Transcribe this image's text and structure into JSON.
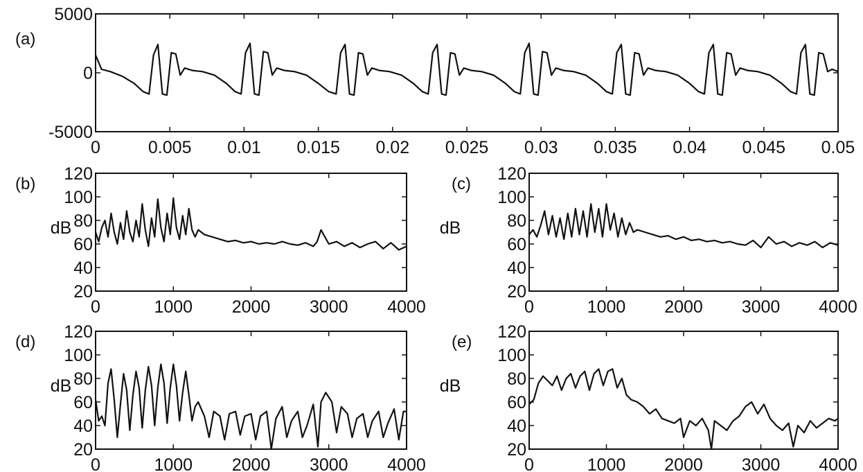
{
  "chart_data": [
    {
      "type": "line",
      "label": "(a)",
      "xlabel": "",
      "ylabel": "",
      "xlim": [
        0,
        0.05
      ],
      "ylim": [
        -5000,
        5000
      ],
      "xticks": [
        "0",
        "0.005",
        "0.01",
        "0.015",
        "0.02",
        "0.025",
        "0.03",
        "0.035",
        "0.04",
        "0.045",
        "0.05"
      ],
      "yticks": [
        "-5000",
        "0",
        "5000"
      ],
      "pitch_period": 0.0049,
      "series": [
        {
          "x": [
            0,
            0.0004,
            0.001,
            0.0018,
            0.0026,
            0.0032,
            0.0036,
            0.0039,
            0.0042,
            0.0045,
            0.0048,
            0.0051,
            0.0054,
            0.0057,
            0.006,
            0.0065,
            0.0072,
            0.008,
            0.0088,
            0.0094,
            0.0098,
            0.0101,
            0.0104,
            0.0107,
            0.011,
            0.0113,
            0.0116,
            0.0119,
            0.0122,
            0.0127,
            0.0134,
            0.0142,
            0.015,
            0.0157,
            0.0162,
            0.0165,
            0.0168,
            0.0171,
            0.0174,
            0.0177,
            0.018,
            0.0183,
            0.0186,
            0.0191,
            0.0198,
            0.0206,
            0.0214,
            0.022,
            0.0224,
            0.0227,
            0.023,
            0.0233,
            0.0236,
            0.0239,
            0.0242,
            0.0245,
            0.0248,
            0.0253,
            0.026,
            0.0268,
            0.0276,
            0.0282,
            0.0286,
            0.0289,
            0.0292,
            0.0295,
            0.0298,
            0.0301,
            0.0304,
            0.0307,
            0.031,
            0.0315,
            0.0322,
            0.033,
            0.0338,
            0.0344,
            0.0348,
            0.0351,
            0.0354,
            0.0357,
            0.036,
            0.0363,
            0.0366,
            0.0369,
            0.0372,
            0.0377,
            0.0384,
            0.0392,
            0.04,
            0.0406,
            0.041,
            0.0413,
            0.0416,
            0.0419,
            0.0422,
            0.0425,
            0.0428,
            0.0431,
            0.0434,
            0.0439,
            0.0446,
            0.0454,
            0.0462,
            0.0468,
            0.0472,
            0.0475,
            0.0478,
            0.0481,
            0.0484,
            0.0487,
            0.049,
            0.0493,
            0.0496,
            0.05
          ],
          "y": [
            1500,
            300,
            100,
            -300,
            -900,
            -1600,
            -1800,
            1500,
            2400,
            -1800,
            -1900,
            1700,
            1600,
            -200,
            400,
            200,
            100,
            -200,
            -900,
            -1600,
            -1800,
            1700,
            2500,
            -1800,
            -1900,
            1800,
            1700,
            -200,
            400,
            200,
            100,
            -200,
            -900,
            -1600,
            -1800,
            1700,
            2400,
            -1800,
            -1900,
            1700,
            1600,
            -200,
            400,
            200,
            100,
            -200,
            -900,
            -1600,
            -1800,
            1700,
            2400,
            -1800,
            -1900,
            1700,
            1600,
            -200,
            400,
            200,
            100,
            -200,
            -900,
            -1600,
            -1800,
            1700,
            2500,
            -1800,
            -1900,
            1800,
            1700,
            -200,
            400,
            200,
            100,
            -200,
            -900,
            -1600,
            -1800,
            1700,
            2400,
            -1800,
            -1900,
            1700,
            1600,
            -200,
            400,
            200,
            100,
            -200,
            -900,
            -1600,
            -1800,
            1700,
            2400,
            -1800,
            -1900,
            1700,
            1600,
            -200,
            400,
            200,
            100,
            -200,
            -900,
            -1600,
            -1800,
            1700,
            2400,
            -1800,
            -1900,
            1700,
            1600,
            100,
            300,
            100
          ]
        }
      ]
    },
    {
      "type": "line",
      "label": "(b)",
      "xlabel": "",
      "ylabel": "dB",
      "xlim": [
        0,
        4000
      ],
      "ylim": [
        20,
        120
      ],
      "xticks": [
        "0",
        "1000",
        "2000",
        "3000",
        "4000"
      ],
      "yticks": [
        "20",
        "40",
        "60",
        "80",
        "100",
        "120"
      ],
      "harmonic_spacing": 200,
      "series": [
        {
          "x": [
            0,
            40,
            80,
            120,
            160,
            200,
            240,
            280,
            320,
            360,
            400,
            440,
            480,
            520,
            560,
            600,
            640,
            680,
            720,
            760,
            800,
            840,
            880,
            920,
            960,
            1000,
            1040,
            1080,
            1120,
            1160,
            1200,
            1240,
            1280,
            1320,
            1400,
            1500,
            1600,
            1700,
            1800,
            1900,
            2000,
            2100,
            2200,
            2300,
            2400,
            2500,
            2600,
            2700,
            2800,
            2850,
            2900,
            2950,
            3000,
            3100,
            3200,
            3300,
            3400,
            3500,
            3600,
            3700,
            3800,
            3900,
            4000
          ],
          "y": [
            70,
            62,
            74,
            80,
            66,
            86,
            70,
            60,
            78,
            64,
            88,
            70,
            62,
            80,
            66,
            94,
            72,
            58,
            82,
            66,
            98,
            74,
            62,
            86,
            68,
            99,
            74,
            64,
            84,
            68,
            90,
            72,
            66,
            72,
            68,
            66,
            64,
            62,
            63,
            61,
            62,
            60,
            61,
            60,
            62,
            60,
            59,
            61,
            58,
            62,
            72,
            66,
            60,
            62,
            58,
            61,
            57,
            60,
            62,
            56,
            61,
            55,
            58
          ]
        }
      ]
    },
    {
      "type": "line",
      "label": "(c)",
      "xlabel": "",
      "ylabel": "dB",
      "xlim": [
        0,
        4000
      ],
      "ylim": [
        20,
        120
      ],
      "xticks": [
        "0",
        "1000",
        "2000",
        "3000",
        "4000"
      ],
      "yticks": [
        "20",
        "40",
        "60",
        "80",
        "100",
        "120"
      ],
      "harmonic_spacing": 200,
      "series": [
        {
          "x": [
            0,
            50,
            100,
            150,
            200,
            250,
            300,
            350,
            400,
            450,
            500,
            550,
            600,
            650,
            700,
            750,
            800,
            850,
            900,
            950,
            1000,
            1050,
            1100,
            1150,
            1200,
            1250,
            1300,
            1350,
            1400,
            1500,
            1600,
            1700,
            1800,
            1900,
            2000,
            2100,
            2200,
            2300,
            2400,
            2500,
            2600,
            2700,
            2800,
            2900,
            3000,
            3100,
            3200,
            3300,
            3400,
            3500,
            3600,
            3700,
            3800,
            3900,
            4000
          ],
          "y": [
            68,
            72,
            66,
            76,
            88,
            68,
            84,
            66,
            82,
            64,
            86,
            66,
            90,
            68,
            88,
            66,
            94,
            70,
            90,
            66,
            94,
            72,
            86,
            66,
            82,
            68,
            78,
            70,
            72,
            70,
            68,
            66,
            67,
            64,
            66,
            63,
            64,
            62,
            63,
            61,
            62,
            60,
            59,
            63,
            57,
            66,
            60,
            62,
            58,
            61,
            59,
            62,
            57,
            61,
            59
          ]
        }
      ]
    },
    {
      "type": "line",
      "label": "(d)",
      "xlabel": "",
      "ylabel": "dB",
      "xlim": [
        0,
        4000
      ],
      "ylim": [
        20,
        120
      ],
      "xticks": [
        "0",
        "1000",
        "2000",
        "3000",
        "4000"
      ],
      "yticks": [
        "20",
        "40",
        "60",
        "80",
        "100",
        "120"
      ],
      "harmonic_spacing": 200,
      "series": [
        {
          "x": [
            0,
            40,
            80,
            120,
            160,
            200,
            240,
            280,
            320,
            360,
            400,
            440,
            480,
            520,
            560,
            600,
            640,
            680,
            720,
            760,
            800,
            840,
            880,
            920,
            960,
            1000,
            1040,
            1080,
            1120,
            1160,
            1200,
            1240,
            1280,
            1320,
            1400,
            1460,
            1520,
            1600,
            1660,
            1720,
            1800,
            1860,
            1920,
            2000,
            2060,
            2120,
            2200,
            2260,
            2320,
            2400,
            2460,
            2520,
            2600,
            2660,
            2720,
            2800,
            2860,
            2900,
            2960,
            3040,
            3100,
            3160,
            3240,
            3300,
            3360,
            3440,
            3500,
            3560,
            3640,
            3700,
            3760,
            3840,
            3900,
            3960,
            4000
          ],
          "y": [
            62,
            44,
            48,
            40,
            76,
            88,
            62,
            30,
            58,
            84,
            70,
            36,
            66,
            86,
            72,
            38,
            70,
            90,
            74,
            40,
            72,
            92,
            76,
            42,
            72,
            92,
            74,
            44,
            68,
            86,
            66,
            44,
            56,
            60,
            48,
            30,
            52,
            48,
            28,
            50,
            52,
            32,
            48,
            50,
            28,
            48,
            52,
            20,
            46,
            56,
            30,
            44,
            52,
            30,
            40,
            58,
            22,
            60,
            68,
            60,
            34,
            56,
            50,
            30,
            46,
            50,
            30,
            44,
            52,
            30,
            42,
            54,
            28,
            52,
            52
          ]
        }
      ]
    },
    {
      "type": "line",
      "label": "(e)",
      "xlabel": "",
      "ylabel": "dB",
      "xlim": [
        0,
        4000
      ],
      "ylim": [
        20,
        120
      ],
      "xticks": [
        "0",
        "1000",
        "2000",
        "3000",
        "4000"
      ],
      "yticks": [
        "20",
        "40",
        "60",
        "80",
        "100",
        "120"
      ],
      "harmonic_spacing": 200,
      "series": [
        {
          "x": [
            0,
            60,
            120,
            180,
            240,
            300,
            360,
            420,
            480,
            540,
            600,
            660,
            720,
            780,
            840,
            900,
            960,
            1020,
            1080,
            1140,
            1200,
            1260,
            1320,
            1400,
            1480,
            1560,
            1640,
            1720,
            1800,
            1880,
            1960,
            2000,
            2080,
            2160,
            2240,
            2320,
            2360,
            2400,
            2480,
            2560,
            2640,
            2720,
            2800,
            2880,
            2960,
            3040,
            3120,
            3200,
            3280,
            3360,
            3420,
            3480,
            3560,
            3640,
            3720,
            3800,
            3880,
            3960,
            4000
          ],
          "y": [
            58,
            62,
            76,
            82,
            78,
            74,
            82,
            70,
            80,
            84,
            72,
            82,
            86,
            70,
            84,
            88,
            74,
            86,
            88,
            72,
            80,
            66,
            62,
            60,
            56,
            50,
            54,
            46,
            44,
            42,
            46,
            30,
            44,
            40,
            46,
            36,
            20,
            44,
            40,
            36,
            44,
            48,
            56,
            60,
            50,
            58,
            46,
            40,
            36,
            42,
            22,
            40,
            34,
            44,
            38,
            42,
            46,
            44,
            46
          ]
        }
      ]
    }
  ]
}
